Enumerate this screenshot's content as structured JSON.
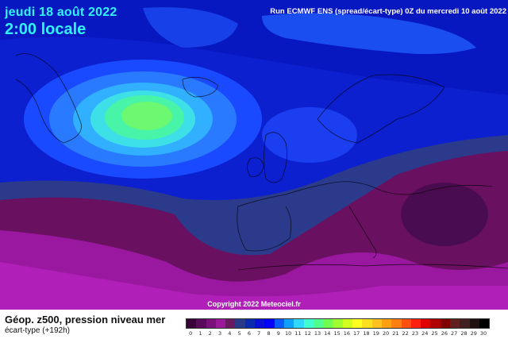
{
  "header": {
    "date": "jeudi 18 août 2022",
    "time": "2:00 locale",
    "run": "Run ECMWF ENS (spread/écart-type) 0Z du mercredi 10 août 2022"
  },
  "copyright": "Copyright 2022 Meteociel.fr",
  "legend": {
    "title": "Géop. z500, pression niveau mer",
    "subtitle": "écart-type  (+192h)",
    "ticks": [
      "0",
      "1",
      "2",
      "3",
      "4",
      "5",
      "6",
      "7",
      "8",
      "9",
      "10",
      "11",
      "12",
      "13",
      "14",
      "15",
      "16",
      "17",
      "18",
      "19",
      "20",
      "21",
      "22",
      "23",
      "24",
      "25",
      "26",
      "27",
      "28",
      "29",
      "30"
    ],
    "colors": [
      "#3a003a",
      "#5a0a5a",
      "#7a107a",
      "#9a1a9a",
      "#6a1a60",
      "#2a3a8a",
      "#0a2ab0",
      "#0a10d8",
      "#0000ff",
      "#0a5aff",
      "#10a0ff",
      "#30d8ff",
      "#40ffd0",
      "#50ff90",
      "#70ff50",
      "#a0ff30",
      "#d0ff20",
      "#ffff20",
      "#ffe020",
      "#ffc020",
      "#ffa010",
      "#ff8010",
      "#ff5010",
      "#ff2010",
      "#e00000",
      "#b00000",
      "#800000",
      "#602020",
      "#402020",
      "#201010",
      "#000000"
    ]
  },
  "colors": {
    "ocean_blue": "#0f2bd8",
    "deep_blue": "#0a16c8",
    "green_core": "#4ff070",
    "purple_south": "#b020b0",
    "dark_purple": "#6a1060",
    "title_cyan": "#2ff3ff"
  }
}
